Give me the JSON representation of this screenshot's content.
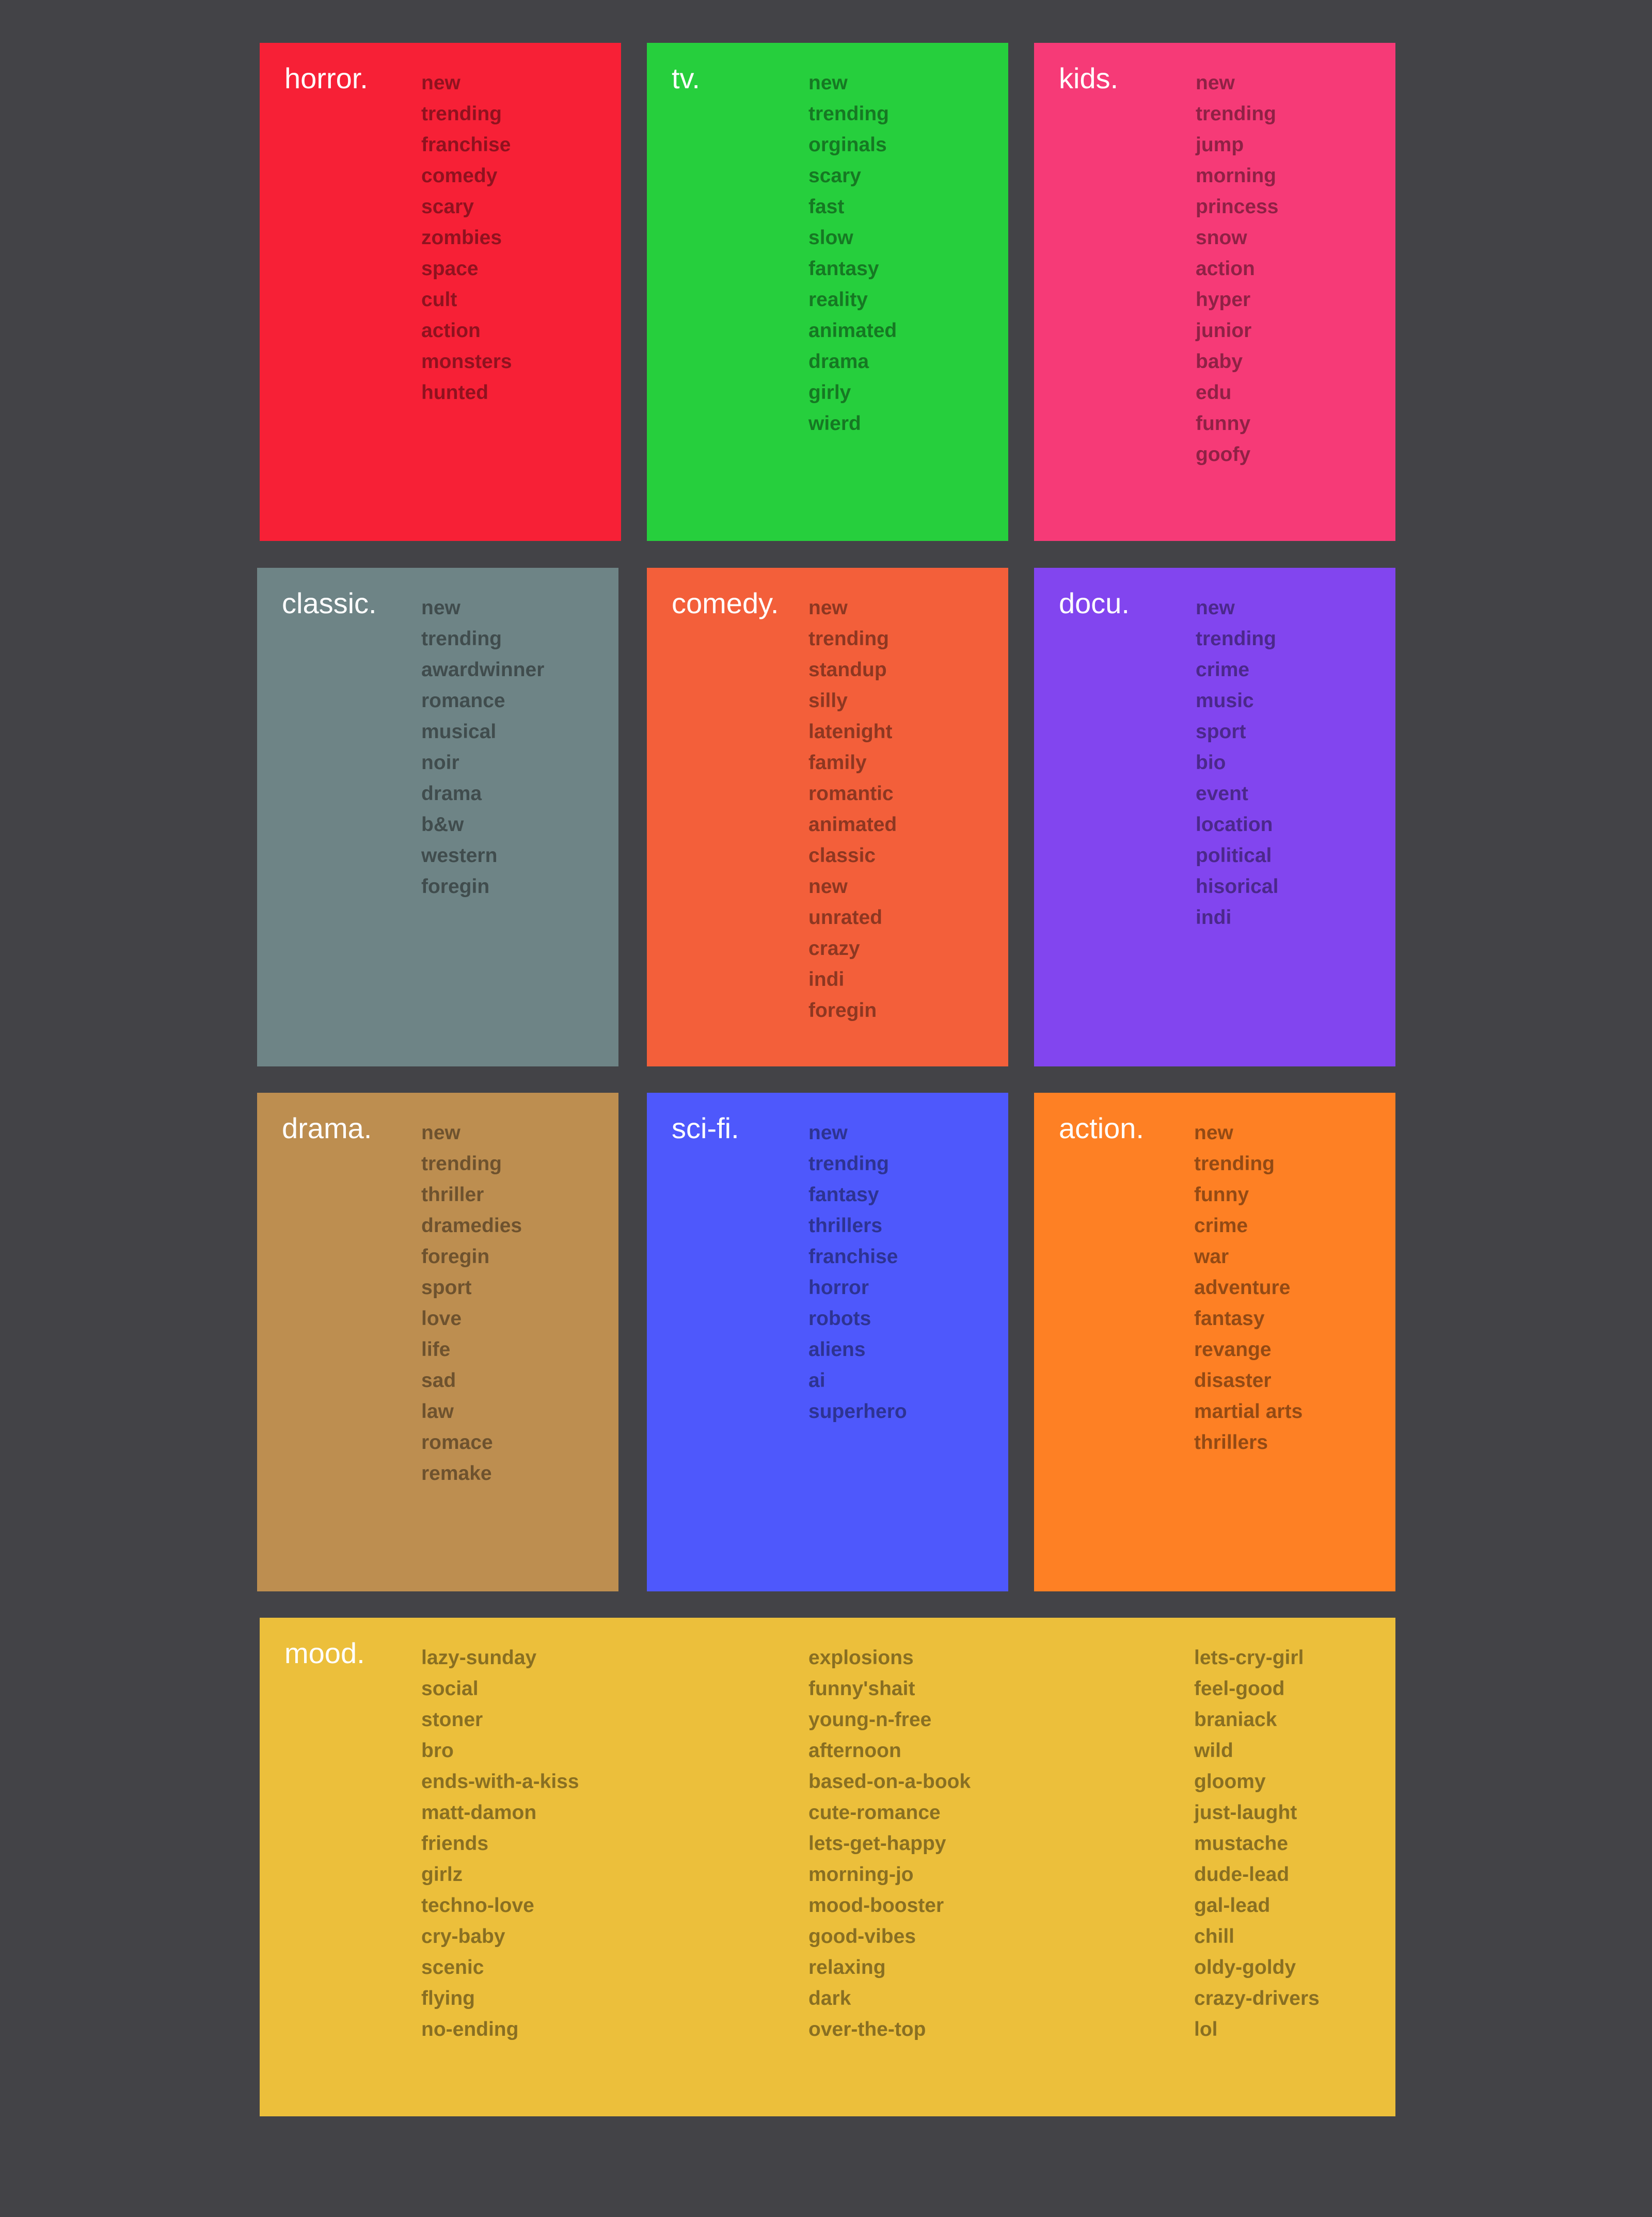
{
  "colors": {
    "background": "#434347",
    "horror": "#f72036",
    "tv": "#26cf3d",
    "kids": "#f63a77",
    "classic": "#6e8486",
    "comedy": "#f35f3a",
    "docu": "#8245ef",
    "drama": "#bd8e50",
    "scifi": "#4e58fc",
    "action": "#fe8024",
    "mood": "#ecbf3b"
  },
  "categories": {
    "horror": {
      "title": "horror.",
      "items": [
        "new",
        "trending",
        "franchise",
        "comedy",
        "scary",
        "zombies",
        "space",
        "cult",
        "action",
        "monsters",
        "hunted"
      ]
    },
    "tv": {
      "title": "tv.",
      "items": [
        "new",
        "trending",
        "orginals",
        "scary",
        "fast",
        "slow",
        "fantasy",
        "reality",
        "animated",
        "drama",
        "girly",
        "wierd"
      ]
    },
    "kids": {
      "title": "kids.",
      "items": [
        "new",
        "trending",
        "jump",
        "morning",
        "princess",
        "snow",
        "action",
        "hyper",
        "junior",
        "baby",
        "edu",
        "funny",
        "goofy"
      ]
    },
    "classic": {
      "title": "classic.",
      "items": [
        "new",
        "trending",
        "awardwinner",
        "romance",
        "musical",
        "noir",
        "drama",
        "b&w",
        "western",
        "foregin"
      ]
    },
    "comedy": {
      "title": "comedy.",
      "items": [
        "new",
        "trending",
        "standup",
        "silly",
        "latenight",
        "family",
        "romantic",
        "animated",
        "classic",
        "new",
        "unrated",
        "crazy",
        "indi",
        "foregin"
      ]
    },
    "docu": {
      "title": "docu.",
      "items": [
        "new",
        "trending",
        "crime",
        "music",
        "sport",
        "bio",
        "event",
        "location",
        "political",
        "hisorical",
        "indi"
      ]
    },
    "drama": {
      "title": "drama.",
      "items": [
        "new",
        "trending",
        "thriller",
        "dramedies",
        "foregin",
        "sport",
        "love",
        "life",
        "sad",
        "law",
        "romace",
        "remake"
      ]
    },
    "scifi": {
      "title": "sci-fi.",
      "items": [
        "new",
        "trending",
        "fantasy",
        "thrillers",
        "franchise",
        "horror",
        "robots",
        "aliens",
        "ai",
        "superhero"
      ]
    },
    "action": {
      "title": "action.",
      "items": [
        "new",
        "trending",
        "funny",
        "crime",
        "war",
        "adventure",
        "fantasy",
        "revange",
        "disaster",
        "martial arts",
        "thrillers"
      ]
    }
  },
  "mood": {
    "title": "mood.",
    "columns": [
      [
        "lazy-sunday",
        "social",
        "stoner",
        "bro",
        "ends-with-a-kiss",
        "matt-damon",
        "friends",
        "girlz",
        "techno-love",
        "cry-baby",
        "scenic",
        "flying",
        "no-ending"
      ],
      [
        "explosions",
        "funny'shait",
        "young-n-free",
        "afternoon",
        "based-on-a-book",
        "cute-romance",
        "lets-get-happy",
        "morning-jo",
        "mood-booster",
        "good-vibes",
        "relaxing",
        "dark",
        "over-the-top"
      ],
      [
        "lets-cry-girl",
        "feel-good",
        "braniack",
        "wild",
        "gloomy",
        "just-laught",
        "mustache",
        "dude-lead",
        "gal-lead",
        "chill",
        "oldy-goldy",
        "crazy-drivers",
        "lol"
      ]
    ]
  }
}
